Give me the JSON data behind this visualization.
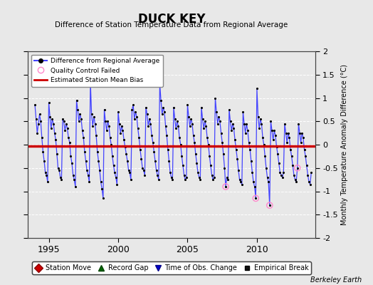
{
  "title": "DUCK KEY",
  "subtitle": "Difference of Station Temperature Data from Regional Average",
  "ylabel": "Monthly Temperature Anomaly Difference (°C)",
  "xlabel_years": [
    1995,
    2000,
    2005,
    2010
  ],
  "ylim": [
    -2,
    2
  ],
  "xlim": [
    1993.5,
    2014.2
  ],
  "bias_value": -0.03,
  "background_color": "#e8e8e8",
  "plot_background": "#e8e8e8",
  "line_color": "#4444ff",
  "dot_color": "#000000",
  "bias_color": "#cc0000",
  "qc_color": "#ff88cc",
  "watermark": "Berkeley Earth",
  "yticks": [
    -2,
    -1.5,
    -1,
    -0.5,
    0,
    0.5,
    1,
    1.5,
    2
  ],
  "time_series": [
    [
      1994.0,
      0.85
    ],
    [
      1994.083,
      0.55
    ],
    [
      1994.167,
      0.25
    ],
    [
      1994.25,
      0.45
    ],
    [
      1994.333,
      0.65
    ],
    [
      1994.417,
      0.5
    ],
    [
      1994.5,
      0.15
    ],
    [
      1994.583,
      -0.15
    ],
    [
      1994.667,
      -0.35
    ],
    [
      1994.75,
      -0.6
    ],
    [
      1994.833,
      -0.65
    ],
    [
      1994.917,
      -0.8
    ],
    [
      1995.0,
      0.9
    ],
    [
      1995.083,
      0.6
    ],
    [
      1995.167,
      0.35
    ],
    [
      1995.25,
      0.55
    ],
    [
      1995.333,
      0.45
    ],
    [
      1995.417,
      0.25
    ],
    [
      1995.5,
      0.1
    ],
    [
      1995.583,
      -0.2
    ],
    [
      1995.667,
      -0.5
    ],
    [
      1995.75,
      -0.55
    ],
    [
      1995.833,
      -0.7
    ],
    [
      1995.917,
      -0.75
    ],
    [
      1996.0,
      0.55
    ],
    [
      1996.083,
      0.5
    ],
    [
      1996.167,
      0.3
    ],
    [
      1996.25,
      0.45
    ],
    [
      1996.333,
      0.35
    ],
    [
      1996.417,
      0.15
    ],
    [
      1996.5,
      0.05
    ],
    [
      1996.583,
      -0.25
    ],
    [
      1996.667,
      -0.4
    ],
    [
      1996.75,
      -0.65
    ],
    [
      1996.833,
      -0.75
    ],
    [
      1996.917,
      -0.9
    ],
    [
      1997.0,
      0.95
    ],
    [
      1997.083,
      0.75
    ],
    [
      1997.167,
      0.5
    ],
    [
      1997.25,
      0.65
    ],
    [
      1997.333,
      0.55
    ],
    [
      1997.417,
      0.3
    ],
    [
      1997.5,
      0.15
    ],
    [
      1997.583,
      -0.15
    ],
    [
      1997.667,
      -0.35
    ],
    [
      1997.75,
      -0.55
    ],
    [
      1997.833,
      -0.65
    ],
    [
      1997.917,
      -0.8
    ],
    [
      1998.0,
      1.35
    ],
    [
      1998.083,
      0.65
    ],
    [
      1998.167,
      0.4
    ],
    [
      1998.25,
      0.6
    ],
    [
      1998.333,
      0.45
    ],
    [
      1998.417,
      0.2
    ],
    [
      1998.5,
      -0.15
    ],
    [
      1998.583,
      -0.35
    ],
    [
      1998.667,
      -0.55
    ],
    [
      1998.75,
      -0.8
    ],
    [
      1998.833,
      -0.95
    ],
    [
      1998.917,
      -1.15
    ],
    [
      1999.0,
      0.75
    ],
    [
      1999.083,
      0.5
    ],
    [
      1999.167,
      0.3
    ],
    [
      1999.25,
      0.5
    ],
    [
      1999.333,
      0.4
    ],
    [
      1999.417,
      0.15
    ],
    [
      1999.5,
      0.0
    ],
    [
      1999.583,
      -0.25
    ],
    [
      1999.667,
      -0.45
    ],
    [
      1999.75,
      -0.6
    ],
    [
      1999.833,
      -0.7
    ],
    [
      1999.917,
      -0.85
    ],
    [
      2000.0,
      0.7
    ],
    [
      2000.083,
      0.45
    ],
    [
      2000.167,
      0.25
    ],
    [
      2000.25,
      0.4
    ],
    [
      2000.333,
      0.3
    ],
    [
      2000.417,
      0.1
    ],
    [
      2000.5,
      -0.05
    ],
    [
      2000.583,
      -0.2
    ],
    [
      2000.667,
      -0.35
    ],
    [
      2000.75,
      -0.55
    ],
    [
      2000.833,
      -0.6
    ],
    [
      2000.917,
      -0.75
    ],
    [
      2001.0,
      0.75
    ],
    [
      2001.083,
      0.85
    ],
    [
      2001.167,
      0.55
    ],
    [
      2001.25,
      0.7
    ],
    [
      2001.333,
      0.6
    ],
    [
      2001.417,
      0.35
    ],
    [
      2001.5,
      0.15
    ],
    [
      2001.583,
      -0.1
    ],
    [
      2001.667,
      -0.3
    ],
    [
      2001.75,
      -0.5
    ],
    [
      2001.833,
      -0.55
    ],
    [
      2001.917,
      -0.65
    ],
    [
      2002.0,
      0.8
    ],
    [
      2002.083,
      0.65
    ],
    [
      2002.167,
      0.4
    ],
    [
      2002.25,
      0.55
    ],
    [
      2002.333,
      0.45
    ],
    [
      2002.417,
      0.2
    ],
    [
      2002.5,
      0.05
    ],
    [
      2002.583,
      -0.15
    ],
    [
      2002.667,
      -0.35
    ],
    [
      2002.75,
      -0.55
    ],
    [
      2002.833,
      -0.65
    ],
    [
      2002.917,
      -0.75
    ],
    [
      2003.0,
      1.3
    ],
    [
      2003.083,
      0.95
    ],
    [
      2003.167,
      0.65
    ],
    [
      2003.25,
      0.8
    ],
    [
      2003.333,
      0.7
    ],
    [
      2003.417,
      0.4
    ],
    [
      2003.5,
      0.2
    ],
    [
      2003.583,
      -0.1
    ],
    [
      2003.667,
      -0.35
    ],
    [
      2003.75,
      -0.6
    ],
    [
      2003.833,
      -0.7
    ],
    [
      2003.917,
      -0.75
    ],
    [
      2004.0,
      0.8
    ],
    [
      2004.083,
      0.55
    ],
    [
      2004.167,
      0.35
    ],
    [
      2004.25,
      0.5
    ],
    [
      2004.333,
      0.4
    ],
    [
      2004.417,
      0.15
    ],
    [
      2004.5,
      0.0
    ],
    [
      2004.583,
      -0.25
    ],
    [
      2004.667,
      -0.45
    ],
    [
      2004.75,
      -0.65
    ],
    [
      2004.833,
      -0.75
    ],
    [
      2004.917,
      -0.7
    ],
    [
      2005.0,
      0.85
    ],
    [
      2005.083,
      0.6
    ],
    [
      2005.167,
      0.4
    ],
    [
      2005.25,
      0.55
    ],
    [
      2005.333,
      0.45
    ],
    [
      2005.417,
      0.2
    ],
    [
      2005.5,
      0.05
    ],
    [
      2005.583,
      -0.2
    ],
    [
      2005.667,
      -0.4
    ],
    [
      2005.75,
      -0.6
    ],
    [
      2005.833,
      -0.7
    ],
    [
      2005.917,
      -0.75
    ],
    [
      2006.0,
      0.8
    ],
    [
      2006.083,
      0.55
    ],
    [
      2006.167,
      0.35
    ],
    [
      2006.25,
      0.5
    ],
    [
      2006.333,
      0.4
    ],
    [
      2006.417,
      0.15
    ],
    [
      2006.5,
      0.0
    ],
    [
      2006.583,
      -0.25
    ],
    [
      2006.667,
      -0.45
    ],
    [
      2006.75,
      -0.65
    ],
    [
      2006.833,
      -0.75
    ],
    [
      2006.917,
      -0.7
    ],
    [
      2007.0,
      1.0
    ],
    [
      2007.083,
      0.7
    ],
    [
      2007.167,
      0.45
    ],
    [
      2007.25,
      0.6
    ],
    [
      2007.333,
      0.5
    ],
    [
      2007.417,
      0.25
    ],
    [
      2007.5,
      0.05
    ],
    [
      2007.583,
      -0.2
    ],
    [
      2007.667,
      -0.5
    ],
    [
      2007.75,
      -0.9
    ],
    [
      2007.833,
      -0.7
    ],
    [
      2007.917,
      -0.75
    ],
    [
      2008.0,
      0.75
    ],
    [
      2008.083,
      0.5
    ],
    [
      2008.167,
      0.3
    ],
    [
      2008.25,
      0.45
    ],
    [
      2008.333,
      0.35
    ],
    [
      2008.417,
      0.1
    ],
    [
      2008.5,
      -0.1
    ],
    [
      2008.583,
      -0.3
    ],
    [
      2008.667,
      -0.55
    ],
    [
      2008.75,
      -0.75
    ],
    [
      2008.833,
      -0.8
    ],
    [
      2008.917,
      -0.85
    ],
    [
      2009.0,
      0.7
    ],
    [
      2009.083,
      0.45
    ],
    [
      2009.167,
      0.25
    ],
    [
      2009.25,
      0.45
    ],
    [
      2009.333,
      0.3
    ],
    [
      2009.417,
      0.05
    ],
    [
      2009.5,
      -0.1
    ],
    [
      2009.583,
      -0.35
    ],
    [
      2009.667,
      -0.6
    ],
    [
      2009.75,
      -0.8
    ],
    [
      2009.833,
      -0.9
    ],
    [
      2009.917,
      -1.15
    ],
    [
      2010.0,
      1.2
    ],
    [
      2010.083,
      0.6
    ],
    [
      2010.167,
      0.35
    ],
    [
      2010.25,
      0.55
    ],
    [
      2010.333,
      0.45
    ],
    [
      2010.417,
      0.15
    ],
    [
      2010.5,
      0.0
    ],
    [
      2010.583,
      -0.25
    ],
    [
      2010.667,
      -0.5
    ],
    [
      2010.75,
      -0.7
    ],
    [
      2010.833,
      -0.8
    ],
    [
      2010.917,
      -1.3
    ],
    [
      2011.0,
      0.5
    ],
    [
      2011.083,
      0.3
    ],
    [
      2011.167,
      0.1
    ],
    [
      2011.25,
      0.3
    ],
    [
      2011.333,
      0.2
    ],
    [
      2011.417,
      -0.05
    ],
    [
      2011.5,
      -0.2
    ],
    [
      2011.583,
      -0.4
    ],
    [
      2011.667,
      -0.6
    ],
    [
      2011.75,
      -0.65
    ],
    [
      2011.833,
      -0.7
    ],
    [
      2011.917,
      -0.6
    ],
    [
      2012.0,
      0.45
    ],
    [
      2012.083,
      0.25
    ],
    [
      2012.167,
      0.05
    ],
    [
      2012.25,
      0.25
    ],
    [
      2012.333,
      0.15
    ],
    [
      2012.417,
      -0.1
    ],
    [
      2012.5,
      -0.25
    ],
    [
      2012.583,
      -0.45
    ],
    [
      2012.667,
      -0.65
    ],
    [
      2012.75,
      -0.75
    ],
    [
      2012.833,
      -0.8
    ],
    [
      2012.917,
      -0.5
    ],
    [
      2013.0,
      0.45
    ],
    [
      2013.083,
      0.25
    ],
    [
      2013.167,
      0.05
    ],
    [
      2013.25,
      0.25
    ],
    [
      2013.333,
      0.15
    ],
    [
      2013.417,
      -0.1
    ],
    [
      2013.5,
      -0.25
    ],
    [
      2013.583,
      -0.45
    ],
    [
      2013.667,
      -0.65
    ],
    [
      2013.75,
      -0.8
    ],
    [
      2013.833,
      -0.85
    ],
    [
      2013.917,
      -0.6
    ]
  ],
  "qc_failed_points": [
    [
      2007.75,
      -0.9
    ],
    [
      2009.917,
      -1.15
    ],
    [
      2010.917,
      -1.3
    ],
    [
      2012.917,
      -0.5
    ]
  ]
}
